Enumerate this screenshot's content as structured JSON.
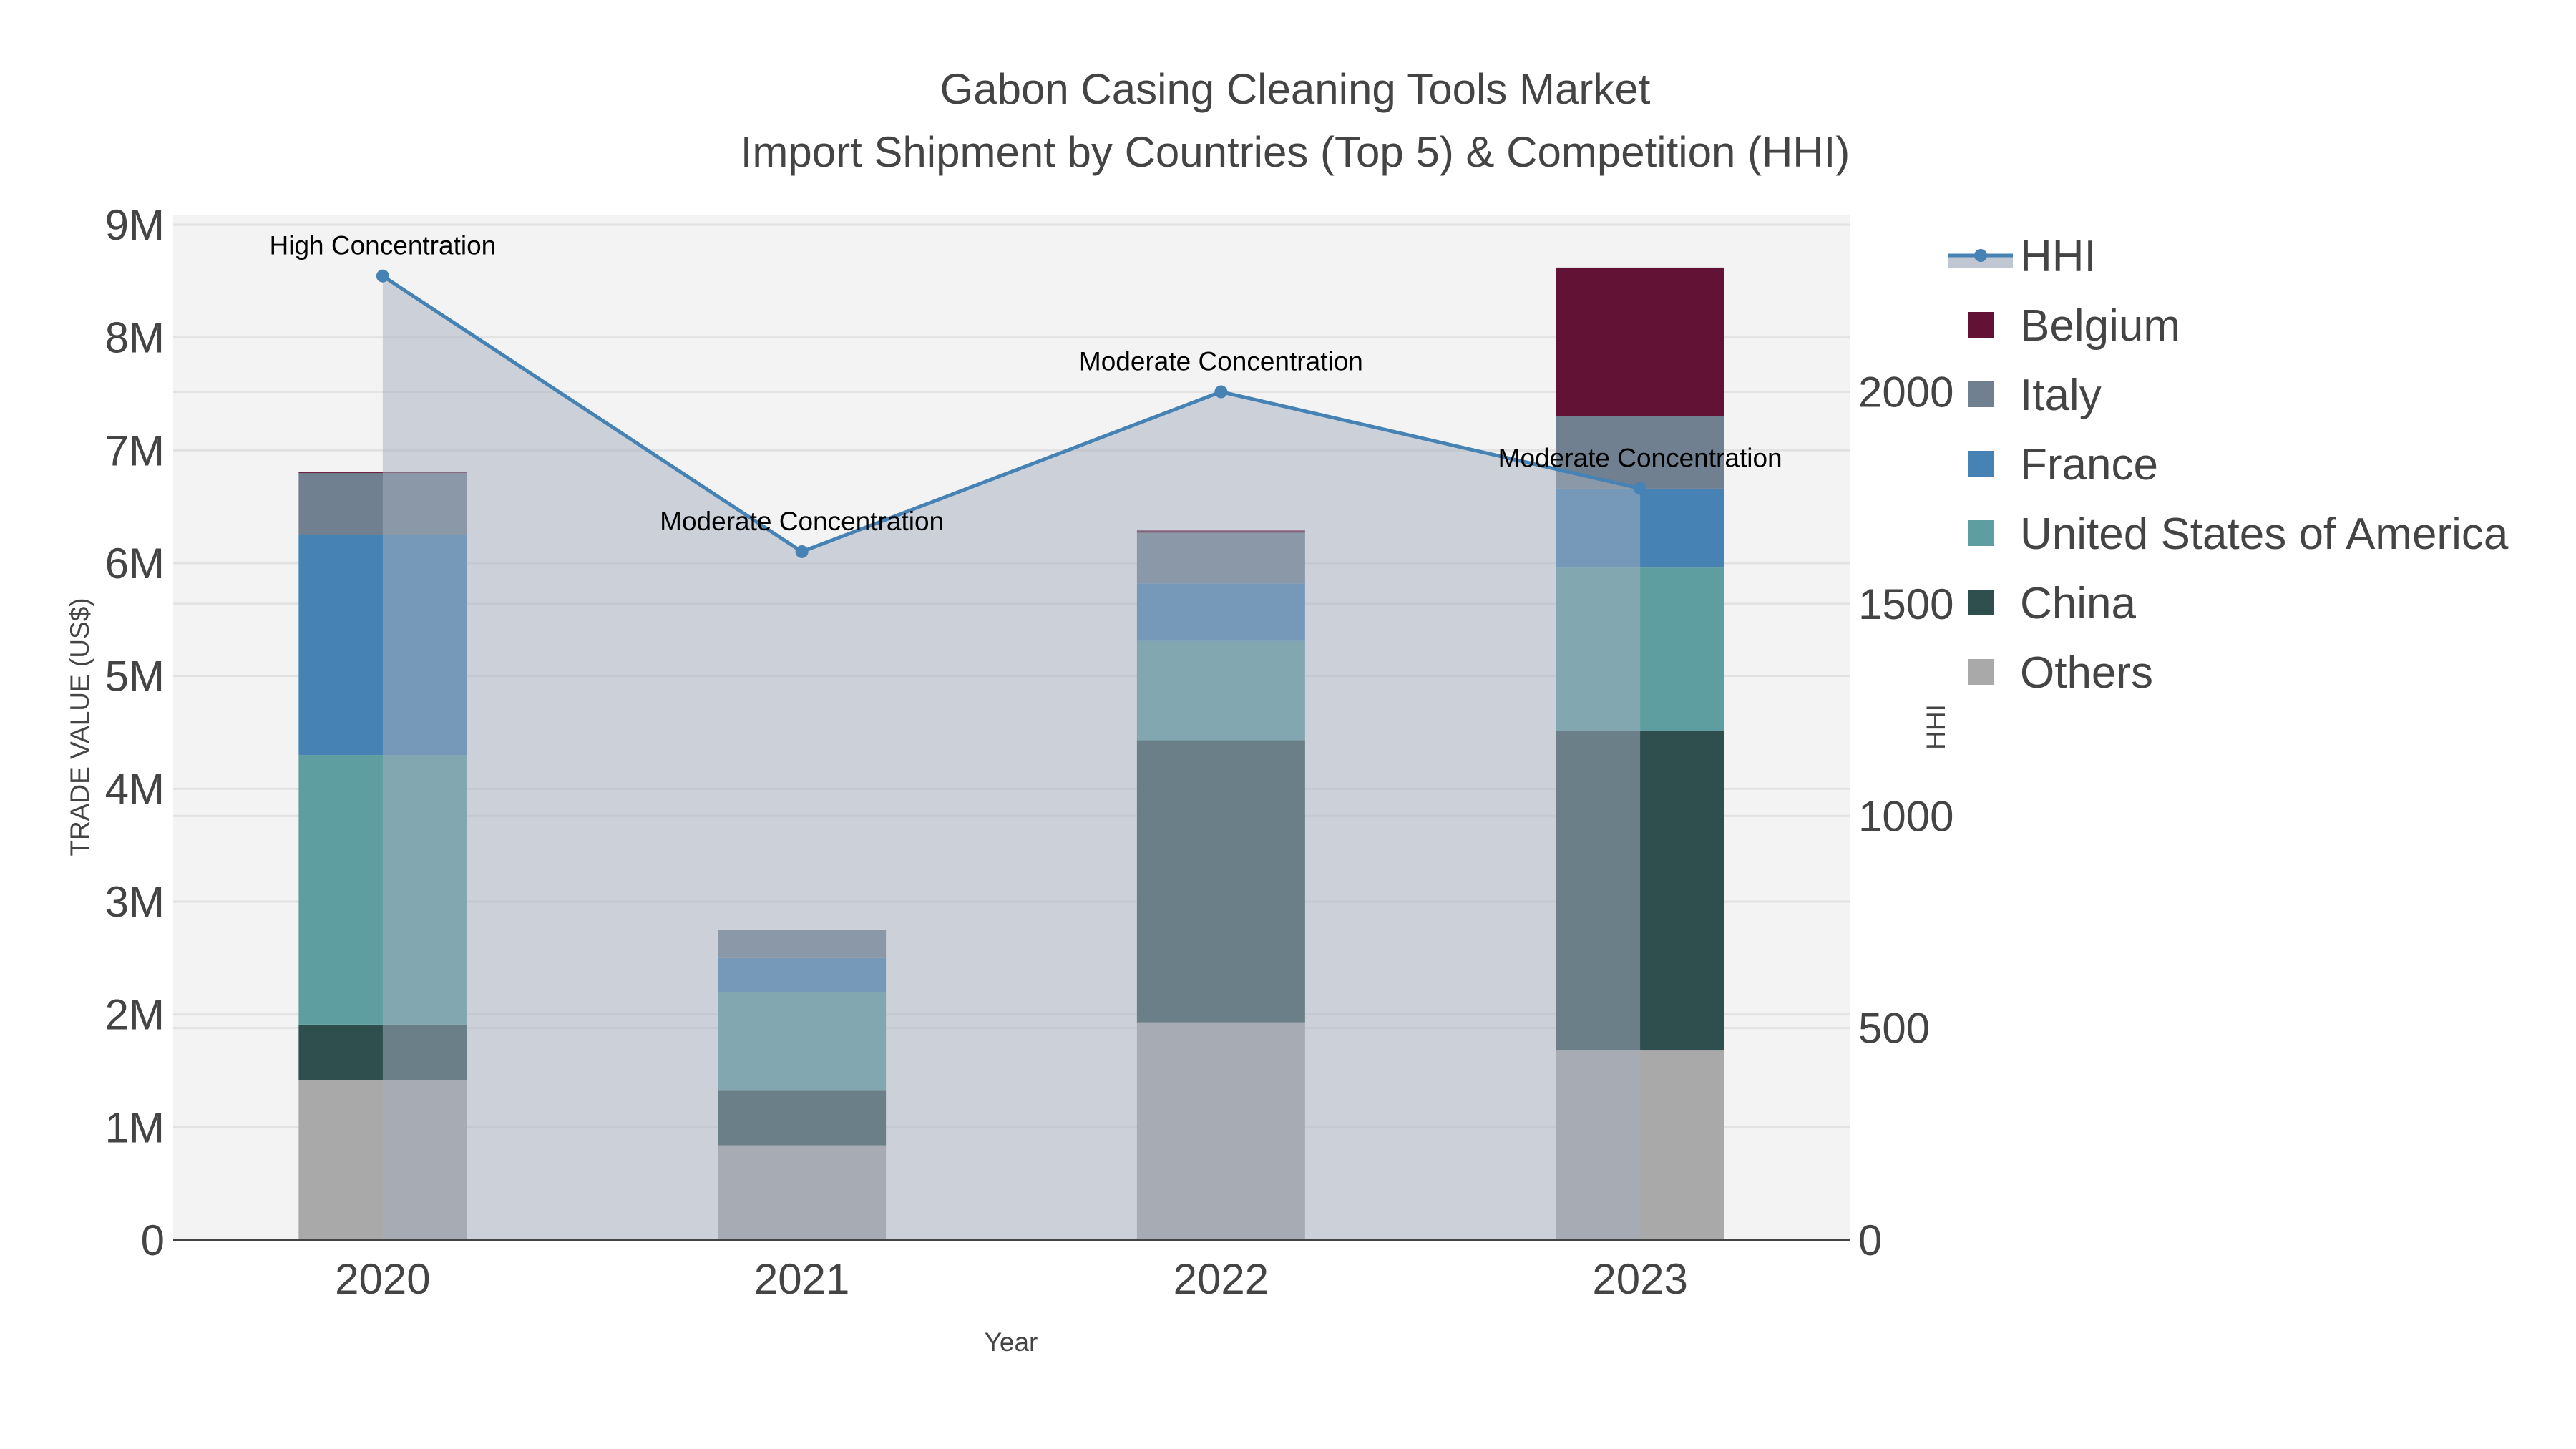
{
  "chart_data": {
    "type": "bar",
    "title": "Gabon Casing Cleaning Tools Market",
    "subtitle": "Import Shipment by Countries (Top 5) & Competition (HHI)",
    "xlabel": "Year",
    "ylabel": "TRADE VALUE (US$)",
    "y2label": "HHI",
    "categories": [
      "2020",
      "2021",
      "2022",
      "2023"
    ],
    "ylim": [
      0,
      9000000
    ],
    "y_ticks": [
      0,
      1000000,
      2000000,
      3000000,
      4000000,
      5000000,
      6000000,
      7000000,
      8000000,
      9000000
    ],
    "y_tick_labels": [
      "0",
      "1M",
      "2M",
      "3M",
      "4M",
      "5M",
      "6M",
      "7M",
      "8M",
      "9M"
    ],
    "y2lim": [
      0,
      2394
    ],
    "y2_ticks": [
      0,
      500,
      1000,
      1500,
      2000
    ],
    "y2_tick_labels": [
      "0",
      "500",
      "1000",
      "1500",
      "2000"
    ],
    "grid": true,
    "legend_position": "right",
    "series": [
      {
        "name": "Others",
        "color": "#a9a9a9",
        "values": [
          1420000,
          840000,
          1930000,
          1680000
        ]
      },
      {
        "name": "China",
        "color": "#2f4f4f",
        "values": [
          490000,
          490000,
          2500000,
          2830000
        ]
      },
      {
        "name": "United States of America",
        "color": "#5f9ea0",
        "values": [
          2390000,
          870000,
          880000,
          1450000
        ]
      },
      {
        "name": "France",
        "color": "#4682b4",
        "values": [
          1950000,
          300000,
          510000,
          700000
        ]
      },
      {
        "name": "Italy",
        "color": "#708090",
        "values": [
          550000,
          250000,
          450000,
          640000
        ]
      },
      {
        "name": "Belgium",
        "color": "#621335",
        "values": [
          5000,
          0,
          20000,
          1320000
        ]
      }
    ],
    "hhi": {
      "name": "HHI",
      "color": "#4682b4",
      "values": [
        2273,
        1623,
        2000,
        1772
      ],
      "annotations": [
        "High Concentration",
        "Moderate Concentration",
        "Moderate Concentration",
        "Moderate Concentration"
      ]
    },
    "legend_order": [
      "HHI",
      "Belgium",
      "Italy",
      "France",
      "United States of America",
      "China",
      "Others"
    ]
  }
}
